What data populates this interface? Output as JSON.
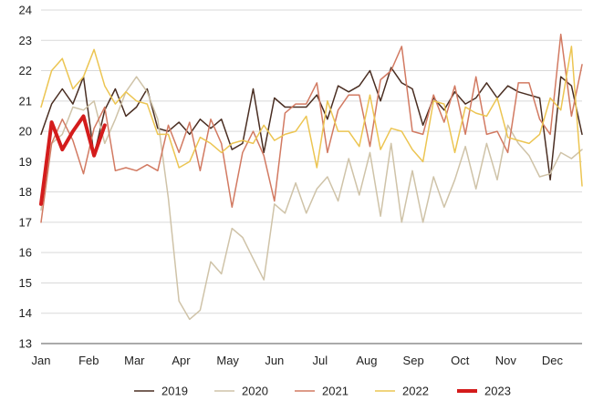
{
  "chart_data": {
    "type": "line",
    "title": "",
    "xlabel": "",
    "ylabel": "",
    "ylim": [
      13,
      24
    ],
    "yticks": [
      13,
      14,
      15,
      16,
      17,
      18,
      19,
      20,
      21,
      22,
      23,
      24
    ],
    "xlim": [
      1,
      52
    ],
    "month_labels": [
      "Jan",
      "Feb",
      "Mar",
      "Apr",
      "May",
      "Jun",
      "Jul",
      "Aug",
      "Sep",
      "Oct",
      "Nov",
      "Dec"
    ],
    "month_weeks": [
      1,
      5.5,
      9.8,
      14.2,
      18.6,
      23,
      27.3,
      31.7,
      36.1,
      40.5,
      44.8,
      49.2
    ],
    "grid": "horizontal",
    "legend_position": "bottom",
    "series": [
      {
        "name": "2019",
        "color": "#4a2e22",
        "stroke_width": 1.5,
        "x": [
          1,
          2,
          3,
          4,
          5,
          6,
          7,
          8,
          9,
          10,
          11,
          12,
          13,
          14,
          15,
          16,
          17,
          18,
          19,
          20,
          21,
          22,
          23,
          24,
          25,
          26,
          27,
          28,
          29,
          30,
          31,
          32,
          33,
          34,
          35,
          36,
          37,
          38,
          39,
          40,
          41,
          42,
          43,
          44,
          45,
          46,
          47,
          48,
          49,
          50,
          51,
          52
        ],
        "values": [
          19.9,
          20.9,
          21.4,
          20.9,
          21.8,
          19.2,
          20.7,
          21.4,
          20.5,
          20.8,
          21.4,
          20.1,
          20.0,
          20.3,
          19.9,
          20.4,
          20.1,
          20.4,
          19.4,
          19.6,
          21.4,
          19.3,
          21.1,
          20.8,
          20.8,
          20.8,
          21.2,
          20.4,
          21.5,
          21.3,
          21.5,
          22.0,
          21.0,
          22.1,
          21.6,
          21.4,
          20.2,
          21.1,
          20.7,
          21.3,
          20.9,
          21.1,
          21.6,
          21.1,
          21.5,
          21.3,
          21.2,
          21.1,
          18.4,
          21.8,
          21.5,
          19.9
        ]
      },
      {
        "name": "2020",
        "color": "#cfc3a8",
        "stroke_width": 1.5,
        "x": [
          1,
          2,
          3,
          4,
          5,
          6,
          7,
          8,
          9,
          10,
          11,
          12,
          13,
          14,
          15,
          16,
          17,
          18,
          19,
          20,
          21,
          22,
          23,
          24,
          25,
          26,
          27,
          28,
          29,
          30,
          31,
          32,
          33,
          34,
          35,
          36,
          37,
          38,
          39,
          40,
          41,
          42,
          43,
          44,
          45,
          46,
          47,
          48,
          49,
          50,
          51,
          52
        ],
        "values": [
          17.4,
          19.6,
          19.9,
          20.8,
          20.7,
          21.0,
          19.6,
          20.4,
          21.3,
          21.8,
          21.3,
          20.4,
          17.8,
          14.4,
          13.8,
          14.1,
          15.7,
          15.3,
          16.8,
          16.5,
          15.8,
          15.1,
          17.6,
          17.3,
          18.3,
          17.3,
          18.1,
          18.5,
          17.7,
          19.1,
          17.9,
          19.3,
          17.2,
          19.6,
          17.0,
          18.7,
          17.0,
          18.5,
          17.5,
          18.4,
          19.5,
          18.1,
          19.6,
          18.4,
          20.2,
          19.6,
          19.2,
          18.5,
          18.6,
          19.3,
          19.1,
          19.4
        ]
      },
      {
        "name": "2021",
        "color": "#d27a62",
        "stroke_width": 1.5,
        "x": [
          1,
          2,
          3,
          4,
          5,
          6,
          7,
          8,
          9,
          10,
          11,
          12,
          13,
          14,
          15,
          16,
          17,
          18,
          19,
          20,
          21,
          22,
          23,
          24,
          25,
          26,
          27,
          28,
          29,
          30,
          31,
          32,
          33,
          34,
          35,
          36,
          37,
          38,
          39,
          40,
          41,
          42,
          43,
          44,
          45,
          46,
          47,
          48,
          49,
          50,
          51,
          52
        ],
        "values": [
          17.0,
          19.6,
          20.4,
          19.7,
          18.6,
          20.1,
          20.8,
          18.7,
          18.8,
          18.7,
          18.9,
          18.7,
          20.2,
          19.3,
          20.3,
          18.7,
          20.4,
          19.6,
          17.5,
          19.3,
          20.0,
          19.2,
          17.7,
          20.6,
          20.9,
          20.9,
          21.6,
          19.3,
          20.7,
          21.2,
          21.2,
          19.5,
          21.7,
          22.0,
          22.8,
          20.0,
          19.9,
          21.2,
          20.3,
          21.5,
          19.9,
          21.8,
          19.9,
          20.0,
          19.3,
          21.6,
          21.6,
          20.4,
          19.9,
          23.2,
          20.5,
          22.2
        ]
      },
      {
        "name": "2022",
        "color": "#ecc552",
        "stroke_width": 1.5,
        "x": [
          1,
          2,
          3,
          4,
          5,
          6,
          7,
          8,
          9,
          10,
          11,
          12,
          13,
          14,
          15,
          16,
          17,
          18,
          19,
          20,
          21,
          22,
          23,
          24,
          25,
          26,
          27,
          28,
          29,
          30,
          31,
          32,
          33,
          34,
          35,
          36,
          37,
          38,
          39,
          40,
          41,
          42,
          43,
          44,
          45,
          46,
          47,
          48,
          49,
          50,
          51,
          52
        ],
        "values": [
          20.8,
          22.0,
          22.4,
          21.4,
          21.8,
          22.7,
          21.5,
          20.9,
          21.3,
          21.0,
          20.9,
          19.9,
          19.9,
          18.8,
          19.0,
          19.8,
          19.6,
          19.3,
          19.6,
          19.7,
          19.6,
          20.2,
          19.7,
          19.9,
          20.0,
          20.5,
          18.8,
          21.0,
          20.0,
          20.0,
          19.5,
          21.2,
          19.4,
          20.1,
          20.0,
          19.4,
          19.0,
          21.0,
          20.9,
          19.3,
          20.8,
          20.6,
          20.5,
          21.1,
          19.8,
          19.7,
          19.6,
          19.9,
          21.1,
          20.7,
          22.8,
          18.2
        ]
      },
      {
        "name": "2023",
        "color": "#d41c1c",
        "stroke_width": 4,
        "x": [
          1,
          2,
          3,
          4,
          5,
          6,
          7
        ],
        "values": [
          17.6,
          20.3,
          19.4,
          20.0,
          20.5,
          19.2,
          20.2
        ]
      }
    ]
  }
}
